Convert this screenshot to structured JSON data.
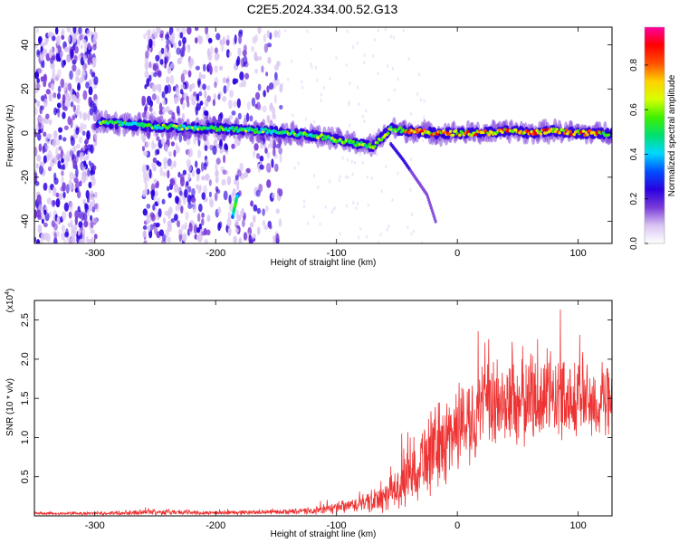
{
  "title": "C2E5.2024.334.00.52.G13",
  "chart_data": [
    {
      "type": "heatmap",
      "title": "",
      "xlabel": "Height of straight line (km)",
      "ylabel": "Frequency (Hz)",
      "xlim": [
        -350,
        128
      ],
      "ylim": [
        -50,
        48
      ],
      "xticks": [
        -300,
        -200,
        -100,
        0,
        100
      ],
      "yticks": [
        -40,
        -20,
        0,
        20,
        40
      ],
      "grid": false,
      "colorbar": {
        "label": "Normalized spectral amplitude",
        "range": [
          0,
          0.97
        ],
        "ticks": [
          0.0,
          0.2,
          0.4,
          0.6,
          0.8
        ],
        "colors": [
          "#ffffff",
          "#d9c4f2",
          "#7a3bd9",
          "#2a00e0",
          "#0050ff",
          "#00d8ff",
          "#00e070",
          "#40f000",
          "#d8ff00",
          "#ffd000",
          "#ff5000",
          "#ff0000",
          "#ff00a0"
        ]
      },
      "ridge": {
        "points": [
          [
            -295,
            5
          ],
          [
            -250,
            3
          ],
          [
            -200,
            2
          ],
          [
            -160,
            1
          ],
          [
            -120,
            -1
          ],
          [
            -90,
            -4
          ],
          [
            -70,
            -6
          ],
          [
            -55,
            2
          ],
          [
            -40,
            1
          ],
          [
            -20,
            0
          ],
          [
            0,
            0
          ],
          [
            20,
            0
          ],
          [
            45,
            1
          ],
          [
            60,
            0
          ],
          [
            80,
            1
          ],
          [
            100,
            0
          ],
          [
            128,
            0
          ]
        ]
      },
      "branch": {
        "points": [
          [
            -55,
            -5
          ],
          [
            -45,
            -12
          ],
          [
            -35,
            -20
          ],
          [
            -25,
            -28
          ],
          [
            -18,
            -40
          ]
        ]
      },
      "streak": {
        "points": [
          [
            -182,
            -28
          ],
          [
            -186,
            -38
          ]
        ]
      }
    },
    {
      "type": "line",
      "title": "",
      "xlabel": "Height of straight line (km)",
      "ylabel": "SNR (10 * v/v)",
      "yexponent": "(x10",
      "yexponent_power": "4",
      "xlim": [
        -350,
        128
      ],
      "ylim": [
        0,
        2.75
      ],
      "xticks": [
        -300,
        -200,
        -100,
        0,
        100
      ],
      "yticks": [
        0.5,
        1.0,
        1.5,
        2.0,
        2.5
      ],
      "grid": false,
      "color": "#ee3333",
      "envelope": {
        "x": [
          -350,
          -300,
          -250,
          -200,
          -150,
          -120,
          -100,
          -80,
          -60,
          -50,
          -40,
          -30,
          -20,
          -10,
          0,
          20,
          40,
          60,
          80,
          100,
          128
        ],
        "mean": [
          0.03,
          0.03,
          0.05,
          0.04,
          0.05,
          0.06,
          0.1,
          0.15,
          0.22,
          0.35,
          0.5,
          0.72,
          0.82,
          0.95,
          1.15,
          1.35,
          1.45,
          1.5,
          1.55,
          1.5,
          1.4
        ],
        "spread": [
          0.02,
          0.02,
          0.04,
          0.03,
          0.03,
          0.05,
          0.08,
          0.12,
          0.2,
          0.3,
          0.4,
          0.5,
          0.6,
          0.6,
          0.6,
          0.6,
          0.65,
          0.65,
          0.6,
          0.55,
          0.5
        ]
      }
    }
  ]
}
